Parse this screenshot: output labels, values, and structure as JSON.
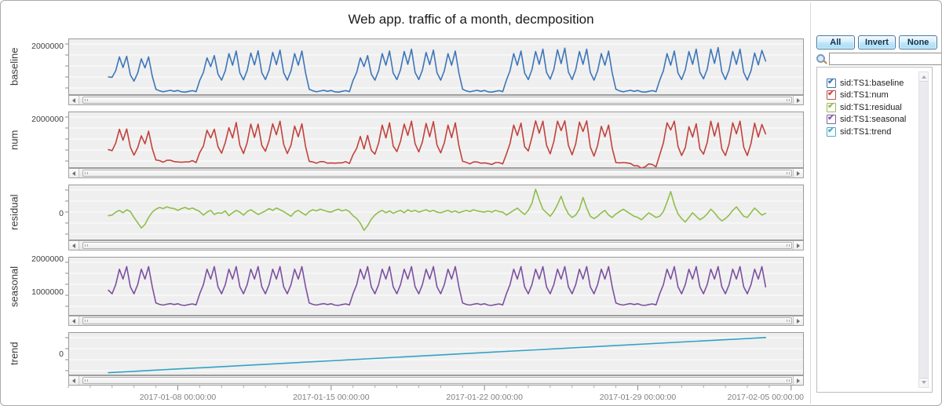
{
  "chart_data": {
    "type": "line",
    "title": "Web app. traffic of a month, decmposition",
    "x_epoch": "2017-01-03 00:00:00",
    "x_domain_days": [
      0,
      33.58
    ],
    "x_axis": {
      "minor_tick_every_days": 1,
      "major_ticks": [
        {
          "day": 5,
          "label": "2017-01-08 00:00:00"
        },
        {
          "day": 12,
          "label": "2017-01-15 00:00:00"
        },
        {
          "day": 19,
          "label": "2017-01-22 00:00:00"
        },
        {
          "day": 26,
          "label": "2017-01-29 00:00:00"
        },
        {
          "day": 33,
          "label": "2017-02-05 00:00:00"
        }
      ]
    },
    "series_sampling": {
      "x0_day": 1.833,
      "dx_day": 0.16667,
      "y_scale": 1000
    },
    "panels": [
      {
        "id": "baseline",
        "label": "baseline",
        "color": "#3d76b8",
        "ylim_k": [
          500,
          2250
        ],
        "yticks": [
          {
            "v_k": 2000,
            "label": "2000000"
          }
        ],
        "values_k": [
          1060,
          1050,
          1250,
          1680,
          1350,
          1700,
          1120,
          930,
          1180,
          1620,
          1340,
          1680,
          1080,
          680,
          630,
          600,
          625,
          645,
          615,
          640,
          600,
          590,
          615,
          635,
          605,
          950,
          1200,
          1650,
          1380,
          1720,
          1150,
          960,
          1250,
          1780,
          1420,
          1860,
          1180,
          970,
          1260,
          1800,
          1430,
          1870,
          1190,
          980,
          1270,
          1820,
          1440,
          1890,
          1190,
          960,
          1250,
          1780,
          1420,
          1860,
          1180,
          680,
          630,
          600,
          625,
          645,
          615,
          640,
          600,
          590,
          615,
          635,
          605,
          950,
          1200,
          1650,
          1380,
          1720,
          1150,
          960,
          1250,
          1780,
          1420,
          1860,
          1180,
          980,
          1280,
          1850,
          1450,
          1920,
          1200,
          980,
          1270,
          1820,
          1440,
          1890,
          1190,
          960,
          1250,
          1780,
          1420,
          1860,
          1180,
          680,
          630,
          600,
          625,
          645,
          615,
          640,
          600,
          590,
          615,
          635,
          605,
          960,
          1250,
          1780,
          1420,
          1860,
          1180,
          980,
          1280,
          1850,
          1450,
          1920,
          1200,
          990,
          1290,
          1900,
          1470,
          1950,
          1210,
          980,
          1280,
          1850,
          1450,
          1920,
          1200,
          960,
          1250,
          1780,
          1420,
          1860,
          1180,
          680,
          630,
          600,
          625,
          645,
          615,
          640,
          600,
          590,
          615,
          635,
          605,
          960,
          1250,
          1780,
          1420,
          1860,
          1180,
          980,
          1280,
          1850,
          1450,
          1920,
          1200,
          1000,
          1300,
          1920,
          1480,
          1970,
          1220,
          980,
          1280,
          1850,
          1450,
          1920,
          1200,
          960,
          1250,
          1800,
          1430,
          1880,
          1550
        ]
      },
      {
        "id": "num",
        "label": "num",
        "color": "#c2423c",
        "ylim_k": [
          500,
          2250
        ],
        "yticks": [
          {
            "v_k": 2000,
            "label": "2000000"
          }
        ],
        "values_k": [
          1070,
          1040,
          1270,
          1700,
          1360,
          1710,
          1140,
          900,
          1130,
          1500,
          1250,
          1640,
          1100,
          750,
          730,
          680,
          740,
          740,
          700,
          690,
          680,
          690,
          690,
          730,
          670,
          980,
          1180,
          1670,
          1430,
          1700,
          1160,
          960,
          1290,
          1750,
          1430,
          1910,
          1200,
          950,
          1290,
          1860,
          1450,
          1860,
          1200,
          1020,
          1350,
          1870,
          1530,
          1950,
          1230,
          950,
          1210,
          1800,
          1470,
          1870,
          1160,
          710,
          690,
          650,
          700,
          700,
          650,
          660,
          650,
          660,
          660,
          700,
          640,
          910,
          1110,
          1480,
          1090,
          1510,
          1050,
          930,
          1270,
          1830,
          1430,
          1900,
          1180,
          1010,
          1330,
          1860,
          1510,
          1950,
          1250,
          1000,
          1310,
          1880,
          1470,
          1940,
          1210,
          970,
          1280,
          1830,
          1440,
          1900,
          1190,
          710,
          680,
          630,
          690,
          690,
          650,
          660,
          640,
          610,
          670,
          670,
          630,
          930,
          1260,
          1830,
          1510,
          1890,
          1160,
          1030,
          1450,
          1960,
          1580,
          1950,
          1210,
          940,
          1320,
          1950,
          1660,
          1960,
          1200,
          910,
          1250,
          1920,
          1630,
          1960,
          1150,
          870,
          1200,
          1790,
          1470,
          1830,
          1110,
          670,
          660,
          670,
          660,
          640,
          570,
          570,
          490,
          540,
          630,
          610,
          540,
          910,
          1280,
          1900,
          1680,
          1950,
          1170,
          890,
          1130,
          1780,
          1460,
          1870,
          1090,
          930,
          1290,
          1950,
          1490,
          1900,
          1090,
          890,
          1250,
          1900,
          1560,
          1950,
          1150,
          890,
          1260,
          1890,
          1460,
          1850,
          1560
        ]
      },
      {
        "id": "residual",
        "label": "residual",
        "color": "#8fbe4b",
        "ylim_k": [
          -450,
          500
        ],
        "yticks": [
          {
            "v_k": 0,
            "label": "0"
          }
        ],
        "values_k": [
          -30,
          -20,
          30,
          60,
          20,
          70,
          40,
          -60,
          -150,
          -240,
          -180,
          -60,
          30,
          80,
          110,
          90,
          120,
          100,
          90,
          60,
          90,
          110,
          80,
          100,
          70,
          40,
          -20,
          30,
          60,
          -10,
          20,
          10,
          50,
          -30,
          20,
          60,
          30,
          -20,
          40,
          70,
          30,
          -10,
          20,
          50,
          90,
          60,
          100,
          70,
          40,
          0,
          -40,
          30,
          60,
          20,
          -20,
          40,
          70,
          50,
          80,
          60,
          40,
          30,
          60,
          80,
          50,
          70,
          40,
          -30,
          -80,
          -160,
          -280,
          -200,
          -90,
          -20,
          30,
          60,
          20,
          50,
          10,
          40,
          60,
          20,
          70,
          40,
          60,
          30,
          50,
          70,
          40,
          60,
          30,
          20,
          40,
          60,
          30,
          50,
          20,
          40,
          60,
          40,
          70,
          50,
          40,
          30,
          50,
          30,
          60,
          40,
          30,
          -20,
          20,
          60,
          100,
          40,
          -10,
          60,
          180,
          420,
          240,
          80,
          20,
          -40,
          40,
          160,
          300,
          120,
          0,
          -60,
          -20,
          80,
          280,
          100,
          -40,
          -80,
          -40,
          20,
          60,
          -20,
          -60,
          0,
          40,
          80,
          40,
          0,
          -40,
          -60,
          -100,
          -40,
          20,
          -20,
          -60,
          -40,
          40,
          200,
          380,
          160,
          0,
          -80,
          -140,
          -60,
          20,
          -40,
          -100,
          -60,
          0,
          80,
          20,
          -60,
          -120,
          -80,
          -20,
          60,
          120,
          40,
          -40,
          -60,
          20,
          100,
          40,
          -20,
          10
        ]
      },
      {
        "id": "seasonal",
        "label": "seasonal",
        "color": "#7c51a1",
        "ylim_k": [
          280,
          2080
        ],
        "yticks": [
          {
            "v_k": 2000,
            "label": "2000000"
          },
          {
            "v_k": 1000,
            "label": "1000000"
          }
        ],
        "values_k": [
          1060,
          950,
          1230,
          1700,
          1400,
          1780,
          1160,
          950,
          1230,
          1700,
          1400,
          1780,
          1160,
          670,
          625,
          605,
          630,
          650,
          620,
          645,
          605,
          595,
          620,
          640,
          610,
          950,
          1230,
          1700,
          1400,
          1780,
          1160,
          950,
          1230,
          1700,
          1400,
          1780,
          1160,
          950,
          1230,
          1700,
          1400,
          1780,
          1160,
          950,
          1230,
          1700,
          1400,
          1780,
          1160,
          950,
          1230,
          1700,
          1400,
          1780,
          1160,
          670,
          625,
          605,
          630,
          650,
          620,
          645,
          605,
          595,
          620,
          640,
          610,
          950,
          1230,
          1700,
          1400,
          1780,
          1160,
          950,
          1230,
          1700,
          1400,
          1780,
          1160,
          950,
          1230,
          1700,
          1400,
          1780,
          1160,
          950,
          1230,
          1700,
          1400,
          1780,
          1160,
          950,
          1230,
          1700,
          1400,
          1780,
          1160,
          670,
          625,
          605,
          630,
          650,
          620,
          645,
          605,
          595,
          620,
          640,
          610,
          950,
          1230,
          1700,
          1400,
          1780,
          1160,
          950,
          1230,
          1700,
          1400,
          1780,
          1160,
          950,
          1230,
          1700,
          1400,
          1780,
          1160,
          950,
          1230,
          1700,
          1400,
          1780,
          1160,
          950,
          1230,
          1700,
          1400,
          1780,
          1160,
          670,
          625,
          605,
          630,
          650,
          620,
          645,
          605,
          595,
          620,
          640,
          610,
          950,
          1230,
          1700,
          1400,
          1780,
          1160,
          950,
          1230,
          1700,
          1400,
          1780,
          1160,
          950,
          1230,
          1700,
          1400,
          1780,
          1160,
          950,
          1230,
          1700,
          1400,
          1780,
          1160,
          950,
          1230,
          1700,
          1400,
          1780,
          1160
        ]
      },
      {
        "id": "trend",
        "label": "trend",
        "color": "#31a3c4",
        "ylim_k": [
          -55,
          58
        ],
        "yticks": [
          {
            "v_k": 0,
            "label": "0"
          }
        ],
        "points_k": [
          [
            1.833,
            -48
          ],
          [
            31.833,
            44
          ]
        ]
      }
    ]
  },
  "sidebar": {
    "buttons": [
      {
        "label": "All"
      },
      {
        "label": "Invert"
      },
      {
        "label": "None"
      }
    ],
    "search": {
      "value": ""
    },
    "legend": [
      {
        "label": "sid:TS1:baseline",
        "color": "#3d76b8",
        "checked": true
      },
      {
        "label": "sid:TS1:num",
        "color": "#c0504d",
        "checked": true
      },
      {
        "label": "sid:TS1:residual",
        "color": "#9bbb59",
        "checked": true
      },
      {
        "label": "sid:TS1:seasonal",
        "color": "#8064a2",
        "checked": true
      },
      {
        "label": "sid:TS1:trend",
        "color": "#4bacc6",
        "checked": true
      }
    ]
  }
}
